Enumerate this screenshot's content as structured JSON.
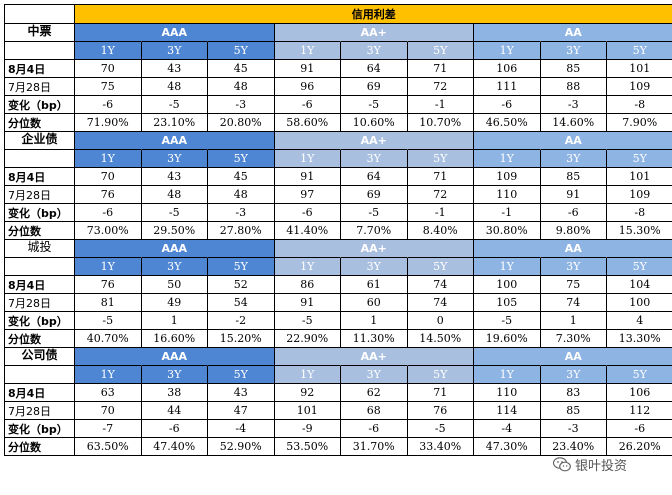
{
  "title": "信用利差",
  "ratings": [
    "AAA",
    "AA+",
    "AA"
  ],
  "tenors": [
    "1Y",
    "3Y",
    "5Y"
  ],
  "row_labels": {
    "current": "8月4日",
    "previous": "7月28日",
    "change": "变化（bp）",
    "percentile": "分位数"
  },
  "sections": [
    {
      "name": "中票",
      "current": [
        "70",
        "43",
        "45",
        "91",
        "64",
        "71",
        "106",
        "85",
        "101"
      ],
      "previous": [
        "75",
        "48",
        "48",
        "96",
        "69",
        "72",
        "111",
        "88",
        "109"
      ],
      "change": [
        "-6",
        "-5",
        "-3",
        "-6",
        "-5",
        "-1",
        "-6",
        "-3",
        "-8"
      ],
      "percentile": [
        "71.90%",
        "23.10%",
        "20.80%",
        "58.60%",
        "10.60%",
        "10.70%",
        "46.50%",
        "14.60%",
        "7.90%"
      ]
    },
    {
      "name": "企业债",
      "current": [
        "70",
        "43",
        "45",
        "91",
        "64",
        "71",
        "109",
        "85",
        "101"
      ],
      "previous": [
        "76",
        "48",
        "48",
        "97",
        "69",
        "72",
        "110",
        "91",
        "109"
      ],
      "change": [
        "-6",
        "-5",
        "-3",
        "-6",
        "-5",
        "-1",
        "-1",
        "-6",
        "-8"
      ],
      "percentile": [
        "73.00%",
        "29.50%",
        "27.80%",
        "41.40%",
        "7.70%",
        "8.40%",
        "30.80%",
        "9.80%",
        "15.30%"
      ]
    },
    {
      "name": "城投",
      "current": [
        "76",
        "50",
        "52",
        "86",
        "61",
        "74",
        "100",
        "75",
        "104"
      ],
      "previous": [
        "81",
        "49",
        "54",
        "91",
        "60",
        "74",
        "105",
        "74",
        "100"
      ],
      "change": [
        "-5",
        "1",
        "-2",
        "-5",
        "1",
        "0",
        "-5",
        "1",
        "4"
      ],
      "percentile": [
        "40.70%",
        "16.60%",
        "15.20%",
        "22.90%",
        "11.30%",
        "14.50%",
        "19.60%",
        "7.30%",
        "13.30%"
      ]
    },
    {
      "name": "公司债",
      "current": [
        "63",
        "38",
        "43",
        "92",
        "62",
        "71",
        "110",
        "83",
        "106"
      ],
      "previous": [
        "70",
        "44",
        "47",
        "101",
        "68",
        "76",
        "114",
        "85",
        "112"
      ],
      "change": [
        "-7",
        "-6",
        "-4",
        "-9",
        "-6",
        "-5",
        "-4",
        "-3",
        "-6"
      ],
      "percentile": [
        "63.50%",
        "47.40%",
        "52.90%",
        "53.50%",
        "31.70%",
        "33.40%",
        "47.30%",
        "23.40%",
        "26.20%"
      ]
    }
  ],
  "watermark": "银叶投资"
}
